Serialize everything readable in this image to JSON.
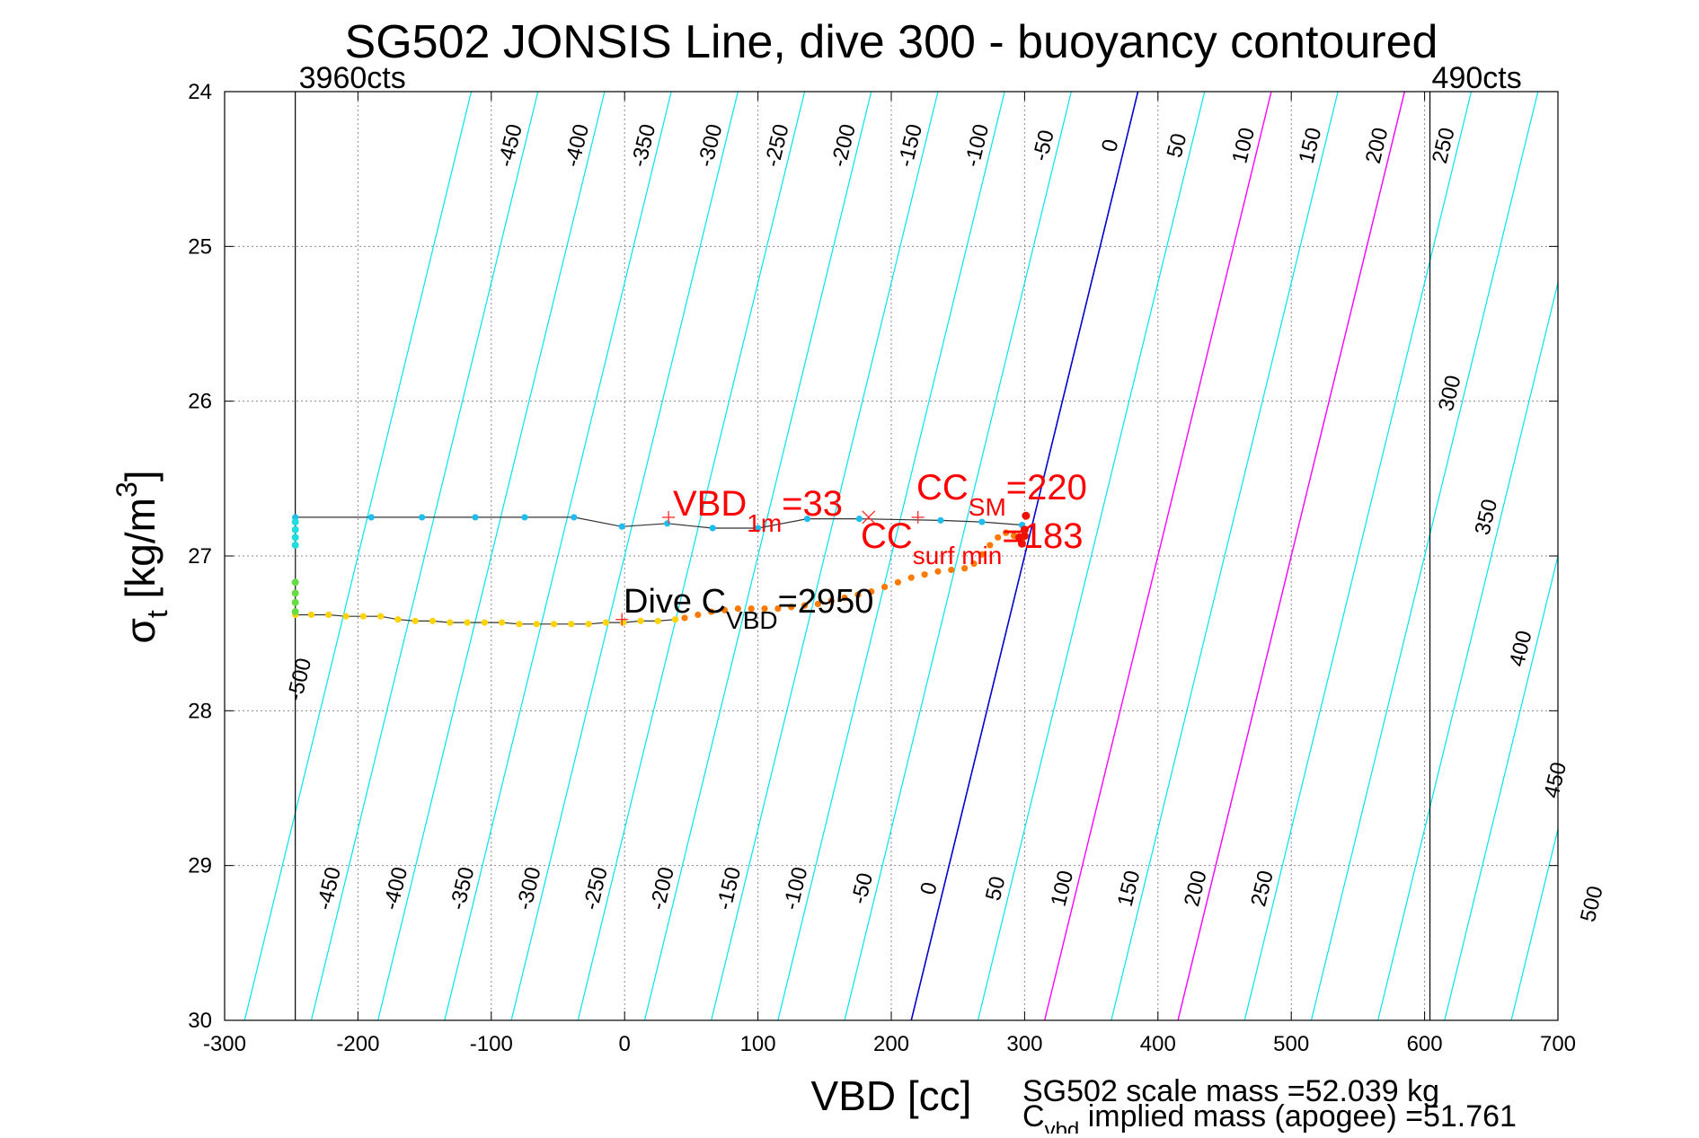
{
  "chart_data": {
    "type": "scatter",
    "title": "SG502 JONSIS Line, dive 300 - buoyancy contoured",
    "xlabel": "VBD [cc]",
    "ylabel": {
      "sym": "σ",
      "sub": "t",
      "unit_pre": " [kg/m",
      "sup": "3",
      "unit_post": "]"
    },
    "xlim": [
      -300,
      700
    ],
    "ylim": [
      24,
      30
    ],
    "y_reversed": true,
    "grid": true,
    "xticks": [
      -300,
      -200,
      -100,
      0,
      100,
      200,
      300,
      400,
      500,
      600,
      700
    ],
    "yticks": [
      24,
      25,
      26,
      27,
      28,
      29,
      30
    ],
    "vbd_limits": [
      {
        "x": -247,
        "label": "3960cts"
      },
      {
        "x": 604,
        "label": "490cts"
      }
    ],
    "buoyancy_contours": {
      "cyan_levels": [
        -500,
        -450,
        -400,
        -350,
        -300,
        -250,
        -200,
        -150,
        -100,
        -50,
        50,
        150,
        200,
        250,
        300,
        350,
        400,
        450,
        500
      ],
      "zero_level": 0,
      "magenta_levels": [
        100,
        200
      ],
      "top_labels": [
        "-450",
        "-400",
        "-350",
        "-300",
        "-250",
        "-200",
        "-150",
        "-100",
        "-50",
        "0",
        "50",
        "100",
        "150",
        "200",
        "250"
      ],
      "right_labels": [
        "300",
        "350",
        "400",
        "450"
      ],
      "bottom_labels": [
        "-450",
        "-400",
        "-350",
        "-300",
        "-250",
        "-200",
        "-150",
        "-100",
        "-50",
        "0",
        "50",
        "100",
        "150",
        "200",
        "250",
        "500"
      ],
      "left_label": "-500",
      "colors": {
        "cyan": "#00e5ee",
        "zero": "#0000cc",
        "magenta": "#ff00ff"
      }
    },
    "series": [
      {
        "role": "climb",
        "color": "#1ebdf0",
        "x": [
          -247,
          -190,
          -152,
          -112,
          -75,
          -38,
          -2,
          32,
          66,
          100,
          137,
          176,
          237,
          268,
          298
        ],
        "y": [
          26.75,
          26.75,
          26.75,
          26.75,
          26.75,
          26.75,
          26.81,
          26.79,
          26.82,
          26.82,
          26.76,
          26.76,
          26.77,
          26.78,
          26.8
        ]
      },
      {
        "role": "dive",
        "color": "#ffd400",
        "x": [
          -247,
          -235,
          -222,
          -209,
          -196,
          -183,
          -170,
          -157,
          -144,
          -131,
          -118,
          -105,
          -92,
          -79,
          -66,
          -53,
          -40,
          -27,
          -14,
          -1,
          12,
          25,
          38
        ],
        "y": [
          27.38,
          27.38,
          27.38,
          27.39,
          27.39,
          27.39,
          27.41,
          27.42,
          27.42,
          27.43,
          27.43,
          27.43,
          27.43,
          27.44,
          27.44,
          27.44,
          27.44,
          27.44,
          27.43,
          27.43,
          27.42,
          27.42,
          27.41
        ]
      },
      {
        "role": "dive-deep",
        "color": "#ff7a00",
        "x": [
          45,
          55,
          65,
          75,
          85,
          95,
          105,
          115,
          125,
          135,
          145,
          155,
          165,
          175,
          185,
          195,
          205,
          215,
          225,
          235,
          245,
          255,
          262,
          268,
          274,
          280,
          286,
          292,
          298
        ],
        "y": [
          27.4,
          27.38,
          27.36,
          27.35,
          27.34,
          27.34,
          27.34,
          27.34,
          27.33,
          27.32,
          27.31,
          27.29,
          27.27,
          27.25,
          27.23,
          27.2,
          27.17,
          27.14,
          27.12,
          27.1,
          27.09,
          27.08,
          27.05,
          26.99,
          26.93,
          26.88,
          26.85,
          26.87,
          26.9
        ]
      },
      {
        "role": "apogee",
        "color": "#ee1100",
        "x": [
          296,
          298,
          300,
          301,
          300
        ],
        "y": [
          26.88,
          26.92,
          26.87,
          26.74,
          26.83
        ]
      },
      {
        "role": "surface-green",
        "color": "#66dd44",
        "x": [
          -247,
          -247,
          -247,
          -247
        ],
        "y": [
          27.17,
          27.24,
          27.3,
          27.36
        ]
      },
      {
        "role": "surface-cyan",
        "color": "#22dddd",
        "x": [
          -247,
          -247,
          -247,
          -247
        ],
        "y": [
          26.78,
          26.83,
          26.88,
          26.93
        ]
      }
    ],
    "markers": [
      {
        "symbol": "+",
        "x": 33,
        "y": 26.75,
        "color": "#ff3333"
      },
      {
        "symbol": "x",
        "x": 183,
        "y": 26.75,
        "color": "#ff3333"
      },
      {
        "symbol": "+",
        "x": 220,
        "y": 26.75,
        "color": "#ff3333"
      },
      {
        "symbol": "+",
        "x": -2,
        "y": 27.41,
        "color": "#ff3333"
      }
    ],
    "annotations": {
      "vbd1m": {
        "main": "VBD",
        "sub": "1m",
        "rest": "=33",
        "color": "#ff0000"
      },
      "ccsm": {
        "main": "CC",
        "sub": "SM",
        "rest": "=220",
        "color": "#ff0000"
      },
      "ccsurf": {
        "main": "CC",
        "sub": "surf min",
        "rest": "=183",
        "color": "#ff0000"
      },
      "divec": {
        "main": "Dive C",
        "sub": "VBD",
        "rest": "=2950",
        "color": "#000000"
      }
    },
    "footer": {
      "line1": "SG502 scale mass =52.039 kg",
      "line2_main": "C",
      "line2_sub": "vbd",
      "line2_rest": " implied mass (apogee) =51.761"
    }
  }
}
